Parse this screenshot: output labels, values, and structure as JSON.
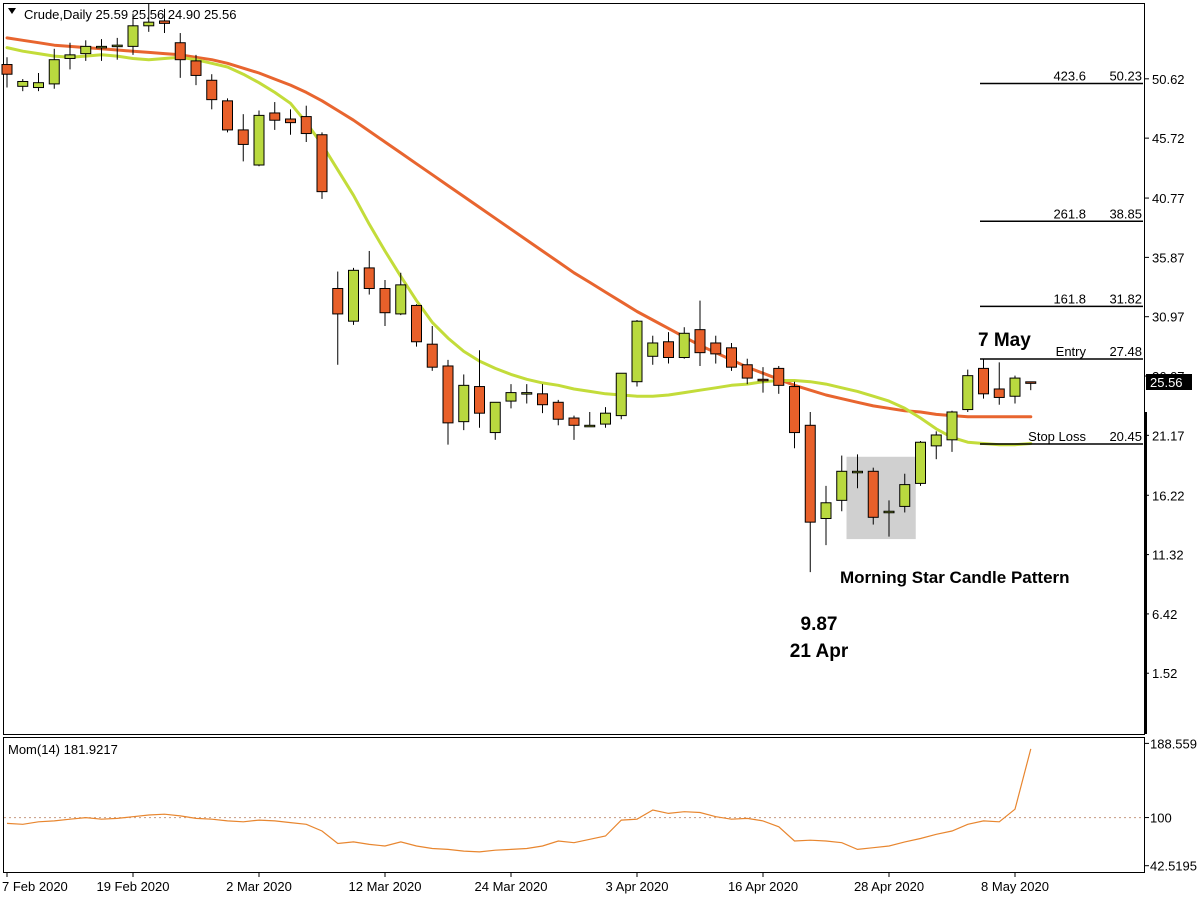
{
  "chart_data": {
    "type": "candlestick",
    "title": "Crude,Daily  25.59 25.56 24.90 25.56",
    "main_panel": {
      "yticks": [
        50.62,
        45.72,
        40.77,
        35.87,
        30.97,
        26.07,
        21.17,
        16.22,
        11.32,
        6.42,
        1.52
      ],
      "yticklabels": [
        "50.62",
        "45.72",
        "40.77",
        "35.87",
        "30.97",
        "26.07",
        "21.17",
        "16.22",
        "11.32",
        "6.42",
        "1.52"
      ],
      "ylim": [
        -3.5,
        56.8
      ],
      "current_price": 25.56,
      "current_price_label": "25.56",
      "candles": [
        {
          "o": 51.8,
          "h": 52.4,
          "c": 51.0,
          "l": 49.9
        },
        {
          "o": 50.0,
          "h": 50.6,
          "c": 50.4,
          "l": 49.6
        },
        {
          "o": 49.9,
          "h": 51.1,
          "c": 50.3,
          "l": 49.6
        },
        {
          "o": 50.2,
          "h": 53.1,
          "c": 52.2,
          "l": 49.8
        },
        {
          "o": 52.3,
          "h": 53.6,
          "c": 52.6,
          "l": 51.4
        },
        {
          "o": 52.7,
          "h": 53.8,
          "c": 53.3,
          "l": 52.1
        },
        {
          "o": 53.3,
          "h": 53.9,
          "c": 53.3,
          "l": 52.1
        },
        {
          "o": 53.3,
          "h": 54.0,
          "c": 53.4,
          "l": 52.2
        },
        {
          "o": 53.3,
          "h": 56.0,
          "c": 55.0,
          "l": 52.6
        },
        {
          "o": 55.0,
          "h": 56.8,
          "c": 55.3,
          "l": 54.5
        },
        {
          "o": 55.4,
          "h": 56.4,
          "c": 55.2,
          "l": 54.4
        },
        {
          "o": 53.6,
          "h": 54.4,
          "c": 52.2,
          "l": 50.7
        },
        {
          "o": 52.1,
          "h": 52.6,
          "c": 50.9,
          "l": 50.1
        },
        {
          "o": 50.5,
          "h": 51.0,
          "c": 48.9,
          "l": 48.1
        },
        {
          "o": 48.8,
          "h": 49.0,
          "c": 46.4,
          "l": 46.2
        },
        {
          "o": 46.4,
          "h": 47.7,
          "c": 45.2,
          "l": 43.8
        },
        {
          "o": 43.5,
          "h": 48.0,
          "c": 47.6,
          "l": 43.4
        },
        {
          "o": 47.8,
          "h": 48.7,
          "c": 47.2,
          "l": 46.4
        },
        {
          "o": 47.3,
          "h": 48.1,
          "c": 47.0,
          "l": 46.0
        },
        {
          "o": 47.5,
          "h": 48.4,
          "c": 46.1,
          "l": 45.4
        },
        {
          "o": 46.0,
          "h": 46.2,
          "c": 41.3,
          "l": 40.7
        },
        {
          "o": 33.3,
          "h": 34.7,
          "c": 31.2,
          "l": 27.0
        },
        {
          "o": 30.6,
          "h": 35.0,
          "c": 34.8,
          "l": 30.3
        },
        {
          "o": 35.0,
          "h": 36.4,
          "c": 33.3,
          "l": 32.8
        },
        {
          "o": 33.3,
          "h": 34.0,
          "c": 31.3,
          "l": 30.2
        },
        {
          "o": 31.2,
          "h": 34.6,
          "c": 33.6,
          "l": 31.1
        },
        {
          "o": 31.9,
          "h": 32.0,
          "c": 28.9,
          "l": 28.5
        },
        {
          "o": 28.7,
          "h": 30.2,
          "c": 26.8,
          "l": 26.5
        },
        {
          "o": 26.9,
          "h": 27.4,
          "c": 22.2,
          "l": 20.4
        },
        {
          "o": 22.3,
          "h": 26.2,
          "c": 25.3,
          "l": 21.6
        },
        {
          "o": 25.2,
          "h": 28.2,
          "c": 23.0,
          "l": 21.8
        },
        {
          "o": 21.4,
          "h": 23.9,
          "c": 23.9,
          "l": 20.8
        },
        {
          "o": 24.0,
          "h": 25.4,
          "c": 24.7,
          "l": 23.4
        },
        {
          "o": 24.7,
          "h": 25.4,
          "c": 24.7,
          "l": 23.8
        },
        {
          "o": 24.6,
          "h": 25.4,
          "c": 23.7,
          "l": 23.0
        },
        {
          "o": 23.9,
          "h": 24.1,
          "c": 22.5,
          "l": 22.0
        },
        {
          "o": 22.6,
          "h": 22.8,
          "c": 22.0,
          "l": 20.8
        },
        {
          "o": 22.0,
          "h": 23.1,
          "c": 22.0,
          "l": 21.9
        },
        {
          "o": 22.1,
          "h": 23.5,
          "c": 23.0,
          "l": 21.8
        },
        {
          "o": 22.8,
          "h": 26.3,
          "c": 26.3,
          "l": 22.5
        },
        {
          "o": 25.6,
          "h": 30.7,
          "c": 30.6,
          "l": 25.2
        },
        {
          "o": 27.7,
          "h": 29.4,
          "c": 28.8,
          "l": 27.0
        },
        {
          "o": 28.9,
          "h": 29.7,
          "c": 27.6,
          "l": 27.1
        },
        {
          "o": 27.6,
          "h": 30.1,
          "c": 29.6,
          "l": 27.5
        },
        {
          "o": 29.9,
          "h": 32.3,
          "c": 28.0,
          "l": 26.9
        },
        {
          "o": 28.8,
          "h": 29.4,
          "c": 27.9,
          "l": 27.1
        },
        {
          "o": 28.4,
          "h": 28.8,
          "c": 26.8,
          "l": 26.5
        },
        {
          "o": 27.0,
          "h": 27.5,
          "c": 25.9,
          "l": 25.4
        },
        {
          "o": 25.8,
          "h": 26.8,
          "c": 25.7,
          "l": 24.7
        },
        {
          "o": 26.7,
          "h": 26.9,
          "c": 25.3,
          "l": 24.6
        },
        {
          "o": 25.2,
          "h": 25.6,
          "c": 21.4,
          "l": 20.1
        },
        {
          "o": 22.0,
          "h": 23.1,
          "c": 14.0,
          "l": 9.87
        },
        {
          "o": 14.3,
          "h": 17.0,
          "c": 15.6,
          "l": 12.1
        },
        {
          "o": 15.8,
          "h": 19.5,
          "c": 18.2,
          "l": 14.9
        },
        {
          "o": 18.2,
          "h": 19.6,
          "c": 18.2,
          "l": 16.8
        },
        {
          "o": 18.2,
          "h": 18.5,
          "c": 14.4,
          "l": 13.8
        },
        {
          "o": 14.9,
          "h": 15.8,
          "c": 14.9,
          "l": 12.8
        },
        {
          "o": 15.3,
          "h": 18.0,
          "c": 17.1,
          "l": 14.8
        },
        {
          "o": 17.2,
          "h": 20.7,
          "c": 20.6,
          "l": 17.0
        },
        {
          "o": 20.3,
          "h": 21.5,
          "c": 21.2,
          "l": 19.2
        },
        {
          "o": 20.8,
          "h": 23.2,
          "c": 23.1,
          "l": 19.8
        },
        {
          "o": 23.3,
          "h": 26.6,
          "c": 26.1,
          "l": 23.1
        },
        {
          "o": 26.7,
          "h": 27.5,
          "c": 24.6,
          "l": 24.2
        },
        {
          "o": 25.0,
          "h": 27.2,
          "c": 24.3,
          "l": 23.7
        },
        {
          "o": 24.4,
          "h": 26.1,
          "c": 25.9,
          "l": 23.8
        },
        {
          "o": 25.59,
          "h": 25.59,
          "c": 25.56,
          "l": 24.9
        }
      ],
      "ma_fast": [
        53.2,
        52.9,
        52.7,
        52.5,
        52.4,
        52.5,
        52.6,
        52.5,
        52.3,
        52.2,
        52.3,
        52.4,
        52.2,
        51.9,
        51.6,
        51.0,
        50.3,
        49.5,
        48.6,
        47.0,
        45.2,
        43.1,
        41.0,
        38.6,
        36.4,
        34.3,
        32.3,
        30.5,
        29.2,
        28.1,
        27.3,
        26.7,
        26.2,
        25.8,
        25.5,
        25.3,
        25.0,
        24.8,
        24.6,
        24.5,
        24.4,
        24.4,
        24.5,
        24.7,
        24.9,
        25.1,
        25.3,
        25.4,
        25.6,
        25.7,
        25.7,
        25.6,
        25.4,
        25.1,
        24.8,
        24.4,
        24.0,
        23.4,
        22.6,
        21.7,
        21.0,
        20.6,
        20.5,
        20.4,
        20.4,
        20.5
      ],
      "ma_slow": [
        54.0,
        53.8,
        53.6,
        53.4,
        53.3,
        53.2,
        53.1,
        53.0,
        52.9,
        52.8,
        52.7,
        52.6,
        52.4,
        52.2,
        51.9,
        51.5,
        51.1,
        50.6,
        50.1,
        49.5,
        48.8,
        48.0,
        47.2,
        46.3,
        45.4,
        44.5,
        43.6,
        42.7,
        41.8,
        40.9,
        40.0,
        39.1,
        38.2,
        37.3,
        36.4,
        35.5,
        34.6,
        33.8,
        33.0,
        32.2,
        31.4,
        30.7,
        30.0,
        29.3,
        28.6,
        28.0,
        27.4,
        26.8,
        26.3,
        25.8,
        25.3,
        24.9,
        24.5,
        24.2,
        23.9,
        23.6,
        23.4,
        23.2,
        23.1,
        22.9,
        22.8,
        22.7,
        22.7,
        22.7,
        22.7,
        22.7
      ],
      "fib_levels": [
        {
          "ratio": "423.6",
          "value": 50.23,
          "value_label": "50.23",
          "label": ""
        },
        {
          "ratio": "261.8",
          "value": 38.85,
          "value_label": "38.85",
          "label": ""
        },
        {
          "ratio": "161.8",
          "value": 31.82,
          "value_label": "31.82",
          "label": ""
        },
        {
          "ratio": "",
          "value": 27.48,
          "value_label": "27.48",
          "label": "Entry"
        },
        {
          "ratio": "",
          "value": 20.45,
          "value_label": "20.45",
          "label": "Stop Loss"
        }
      ],
      "annotations": {
        "low_value": "9.87",
        "low_date": "21 Apr",
        "high_date": "7 May",
        "pattern": "Morning Star Candle Pattern"
      },
      "pattern_box": {
        "from_index": 54,
        "to_index": 57,
        "low": 12.6,
        "high": 19.4
      }
    },
    "momentum_panel": {
      "label": "Mom(14) 181.9217",
      "yticks": [
        188.559,
        100,
        42.5195
      ],
      "yticklabels": [
        "188.559",
        "100",
        "42.5195"
      ],
      "ylim": [
        35,
        195
      ],
      "reference": 100,
      "values": [
        93,
        92,
        95,
        96,
        98,
        100,
        98,
        99,
        101,
        103,
        104,
        102,
        99,
        98,
        96,
        95,
        97,
        96,
        94,
        92,
        84,
        69,
        71,
        68,
        66,
        71,
        66,
        63,
        62,
        60,
        59,
        61,
        62,
        63,
        66,
        72,
        70,
        74,
        78,
        97,
        98,
        109,
        105,
        107,
        106,
        101,
        98,
        99,
        96,
        89,
        72,
        73,
        72,
        70,
        62,
        64,
        66,
        71,
        75,
        80,
        84,
        92,
        96,
        95,
        110,
        182
      ]
    },
    "xticks": [
      {
        "index": 0,
        "label": "7 Feb 2020"
      },
      {
        "index": 8,
        "label": "19 Feb 2020"
      },
      {
        "index": 16,
        "label": "2 Mar 2020"
      },
      {
        "index": 24,
        "label": "12 Mar 2020"
      },
      {
        "index": 32,
        "label": "24 Mar 2020"
      },
      {
        "index": 40,
        "label": "3 Apr 2020"
      },
      {
        "index": 48,
        "label": "16 Apr 2020"
      },
      {
        "index": 56,
        "label": "28 Apr 2020"
      },
      {
        "index": 64,
        "label": "8 May 2020"
      }
    ],
    "colors": {
      "bull": "#b9d93f",
      "bear": "#e8602a",
      "wick": "#000000",
      "ma_fast": "#c3dc3a",
      "ma_slow": "#e8652f",
      "momentum": "#e8862f",
      "reference": "#c89a80",
      "pattern_box": "#d0d0d0"
    }
  }
}
